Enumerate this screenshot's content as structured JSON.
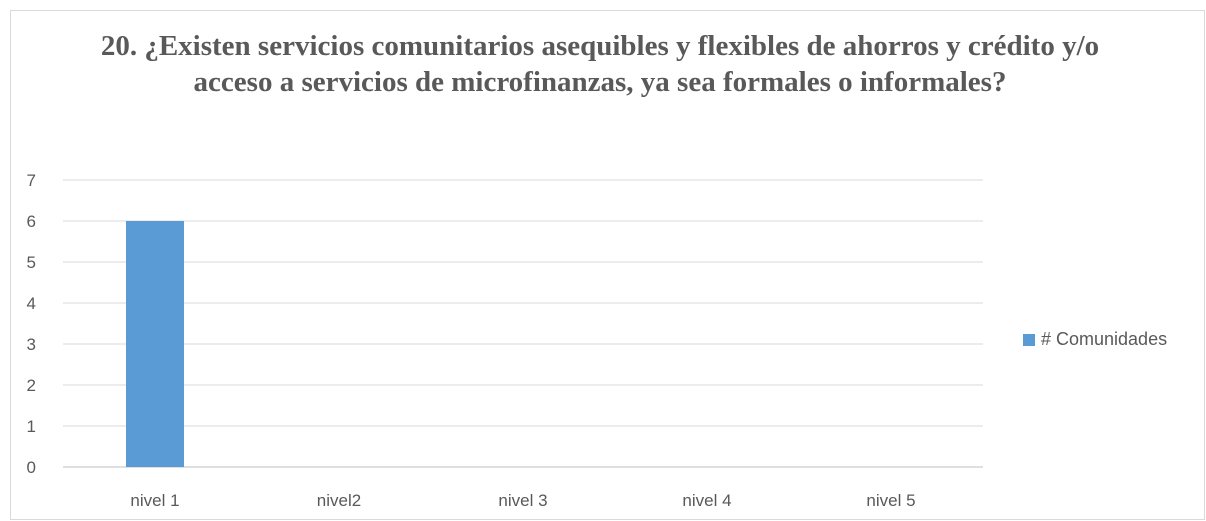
{
  "chart_data": {
    "type": "bar",
    "title": "20. ¿Existen servicios comunitarios asequibles y flexibles de ahorros y crédito y/o acceso a servicios de microfinanzas, ya sea formales o informales?",
    "categories": [
      "nivel 1",
      "nivel2",
      "nivel 3",
      "nivel 4",
      "nivel 5"
    ],
    "series": [
      {
        "name": "# Comunidades",
        "values": [
          6,
          0,
          0,
          0,
          0
        ],
        "color": "#5b9bd5"
      }
    ],
    "ylim": [
      0,
      7
    ],
    "yticks": [
      "0",
      "1",
      "2",
      "3",
      "4",
      "5",
      "6",
      "7"
    ],
    "grid": true,
    "legend_position": "right"
  }
}
